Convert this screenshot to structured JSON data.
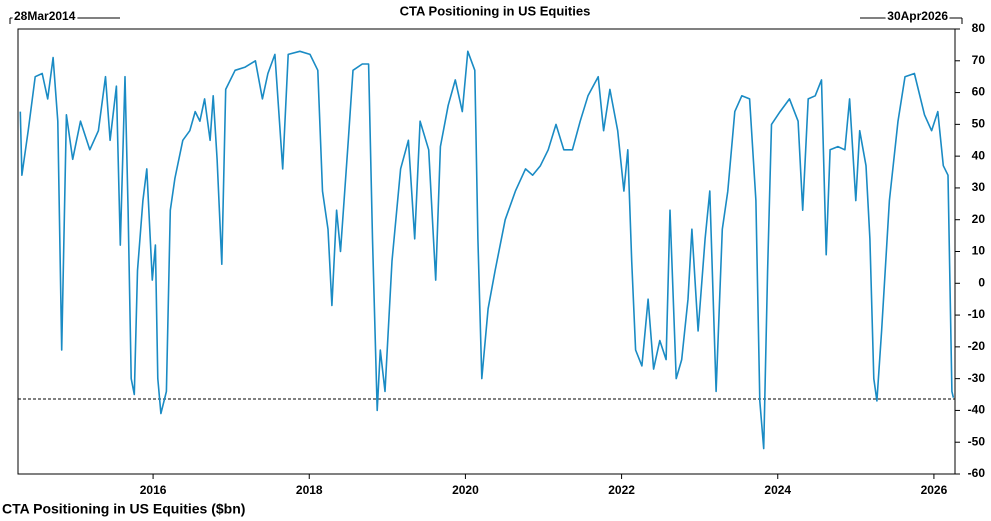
{
  "chart_data": {
    "type": "line",
    "title": "CTA Positioning in US Equities",
    "start_label": "28Mar2014",
    "end_label": "30Apr2026",
    "xlim": [
      2014.27,
      2026.27
    ],
    "xticks": [
      2016,
      2018,
      2020,
      2022,
      2024,
      2026
    ],
    "ylim": [
      -60,
      80
    ],
    "yticks": [
      -60,
      -50,
      -40,
      -30,
      -20,
      -10,
      0,
      10,
      20,
      30,
      40,
      50,
      60,
      70,
      80
    ],
    "reference_line": -36.4,
    "x": [
      2014.3,
      2014.32,
      2014.4,
      2014.49,
      2014.58,
      2014.65,
      2014.72,
      2014.78,
      2014.83,
      2014.89,
      2014.97,
      2015.07,
      2015.19,
      2015.3,
      2015.39,
      2015.45,
      2015.53,
      2015.58,
      2015.64,
      2015.68,
      2015.72,
      2015.76,
      2015.8,
      2015.87,
      2015.92,
      2015.99,
      2016.03,
      2016.06,
      2016.1,
      2016.17,
      2016.22,
      2016.28,
      2016.38,
      2016.47,
      2016.54,
      2016.6,
      2016.66,
      2016.73,
      2016.77,
      2016.82,
      2016.88,
      2016.93,
      2017.05,
      2017.18,
      2017.31,
      2017.4,
      2017.47,
      2017.56,
      2017.66,
      2017.73,
      2017.88,
      2018.01,
      2018.11,
      2018.17,
      2018.24,
      2018.29,
      2018.35,
      2018.4,
      2018.5,
      2018.56,
      2018.68,
      2018.76,
      2018.81,
      2018.87,
      2018.91,
      2018.97,
      2019.06,
      2019.17,
      2019.27,
      2019.35,
      2019.42,
      2019.53,
      2019.62,
      2019.68,
      2019.78,
      2019.87,
      2019.96,
      2020.03,
      2020.12,
      2020.16,
      2020.21,
      2020.29,
      2020.38,
      2020.51,
      2020.64,
      2020.77,
      2020.86,
      2020.96,
      2021.06,
      2021.16,
      2021.26,
      2021.37,
      2021.47,
      2021.57,
      2021.7,
      2021.77,
      2021.85,
      2021.95,
      2022.03,
      2022.08,
      2022.13,
      2022.18,
      2022.26,
      2022.34,
      2022.41,
      2022.49,
      2022.57,
      2022.62,
      2022.7,
      2022.77,
      2022.85,
      2022.9,
      2022.98,
      2023.07,
      2023.13,
      2023.21,
      2023.29,
      2023.36,
      2023.45,
      2023.54,
      2023.64,
      2023.72,
      2023.77,
      2023.82,
      2023.87,
      2023.92,
      2024.03,
      2024.15,
      2024.26,
      2024.32,
      2024.39,
      2024.48,
      2024.56,
      2024.62,
      2024.67,
      2024.77,
      2024.86,
      2024.92,
      2025.0,
      2025.05,
      2025.13,
      2025.18,
      2025.23,
      2025.27,
      2025.33,
      2025.43,
      2025.54,
      2025.63,
      2025.75,
      2025.88,
      2025.97,
      2026.05,
      2026.12,
      2026.18,
      2026.23,
      2026.25
    ],
    "series": [
      {
        "name": "CTA Positioning in US Equities ($bn)",
        "color": "#1a8bc4",
        "values": [
          54,
          34,
          48,
          65,
          66,
          58,
          71,
          51,
          -21,
          53,
          39,
          51,
          42,
          48,
          65,
          45,
          62,
          12,
          65,
          23,
          -30,
          -35,
          4,
          26,
          36,
          1,
          12,
          -30,
          -41,
          -34,
          23,
          33,
          45,
          48,
          54,
          51,
          58,
          45,
          59,
          39,
          6,
          61,
          67,
          68,
          70,
          58,
          66,
          72,
          36,
          72,
          73,
          72,
          67,
          29,
          17,
          -7,
          23,
          10,
          45,
          67,
          69,
          69,
          14,
          -40,
          -21,
          -34,
          7,
          36,
          45,
          14,
          51,
          42,
          1,
          43,
          56,
          64,
          54,
          73,
          67,
          14,
          -30,
          -8,
          4,
          20,
          29,
          36,
          34,
          37,
          42,
          50,
          42,
          42,
          51,
          59,
          65,
          48,
          61,
          48,
          29,
          42,
          7,
          -21,
          -26,
          -5,
          -27,
          -18,
          -24,
          23,
          -30,
          -24,
          -5,
          17,
          -15,
          14,
          29,
          -34,
          17,
          29,
          54,
          59,
          58,
          26,
          -37,
          -52,
          4,
          50,
          54,
          58,
          51,
          23,
          58,
          59,
          64,
          9,
          42,
          43,
          42,
          58,
          26,
          48,
          37,
          14,
          -30,
          -37,
          -15,
          26,
          51,
          65,
          66,
          53,
          48,
          54,
          37,
          34,
          -34,
          -36
        ]
      }
    ]
  }
}
